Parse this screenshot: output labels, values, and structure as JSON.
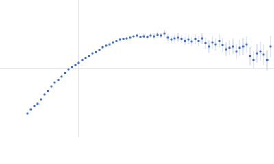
{
  "chart_data": {
    "type": "scatter",
    "xlim": [
      -1.15,
      2.85
    ],
    "ylim": [
      -1,
      1
    ],
    "series": [
      {
        "color": "#3a6bc9",
        "error_color": "#b4c4e6",
        "x": [
          -0.75,
          -0.7,
          -0.65,
          -0.6,
          -0.55,
          -0.5,
          -0.45,
          -0.4,
          -0.35,
          -0.3,
          -0.25,
          -0.2,
          -0.15,
          -0.1,
          -0.05,
          0,
          0.05,
          0.1,
          0.15,
          0.2,
          0.25,
          0.3,
          0.35,
          0.4,
          0.45,
          0.5,
          0.55,
          0.6,
          0.65,
          0.7,
          0.75,
          0.8,
          0.85,
          0.9,
          0.95,
          1,
          1.05,
          1.1,
          1.15,
          1.2,
          1.25,
          1.3,
          1.35,
          1.4,
          1.45,
          1.5,
          1.55,
          1.6,
          1.65,
          1.7,
          1.75,
          1.8,
          1.85,
          1.9,
          1.95,
          2,
          2.05,
          2.1,
          2.15,
          2.2,
          2.25,
          2.3,
          2.35,
          2.4,
          2.45,
          2.5,
          2.55,
          2.6,
          2.65,
          2.7,
          2.75,
          2.8
        ],
        "values": [
          -0.66,
          -0.6,
          -0.55,
          -0.52,
          -0.46,
          -0.38,
          -0.33,
          -0.27,
          -0.21,
          -0.17,
          -0.12,
          -0.07,
          -0.02,
          0.02,
          0.05,
          0.08,
          0.12,
          0.15,
          0.18,
          0.22,
          0.24,
          0.27,
          0.31,
          0.33,
          0.35,
          0.38,
          0.4,
          0.42,
          0.43,
          0.44,
          0.45,
          0.47,
          0.48,
          0.46,
          0.47,
          0.46,
          0.48,
          0.47,
          0.49,
          0.48,
          0.51,
          0.45,
          0.42,
          0.44,
          0.45,
          0.43,
          0.4,
          0.42,
          0.39,
          0.43,
          0.4,
          0.44,
          0.37,
          0.32,
          0.38,
          0.35,
          0.4,
          0.34,
          0.28,
          0.3,
          0.32,
          0.25,
          0.3,
          0.32,
          0.35,
          0.18,
          0.12,
          0.22,
          0.25,
          0.2,
          0.12,
          0.32
        ],
        "errors": [
          0.01,
          0.01,
          0.01,
          0.01,
          0.01,
          0.01,
          0.01,
          0.01,
          0.01,
          0.01,
          0.01,
          0.01,
          0.01,
          0.01,
          0.01,
          0.01,
          0.01,
          0.01,
          0.01,
          0.01,
          0.01,
          0.01,
          0.01,
          0.01,
          0.01,
          0.01,
          0.01,
          0.01,
          0.01,
          0.01,
          0.01,
          0.01,
          0.02,
          0.02,
          0.03,
          0.03,
          0.03,
          0.04,
          0.04,
          0.04,
          0.05,
          0.05,
          0.05,
          0.05,
          0.06,
          0.06,
          0.06,
          0.07,
          0.07,
          0.07,
          0.08,
          0.08,
          0.08,
          0.09,
          0.09,
          0.09,
          0.1,
          0.1,
          0.1,
          0.11,
          0.11,
          0.11,
          0.12,
          0.12,
          0.12,
          0.13,
          0.13,
          0.14,
          0.14,
          0.15,
          0.15,
          0.16
        ]
      }
    ]
  }
}
